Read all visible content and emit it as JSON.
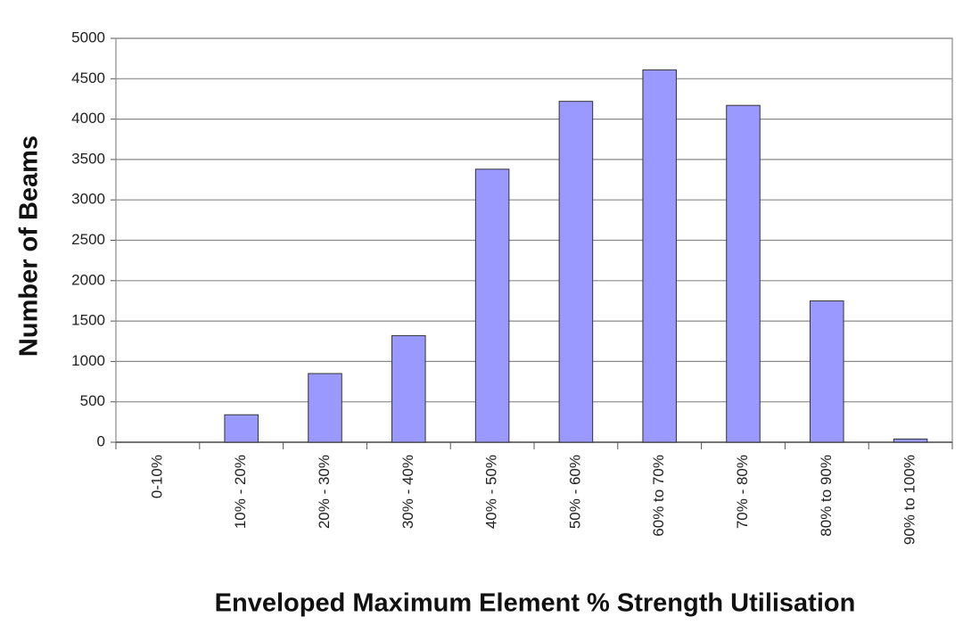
{
  "chart_data": {
    "type": "bar",
    "x_label": "Enveloped Maximum Element % Strength Utilisation",
    "y_label": "Number of Beams",
    "categories": [
      "0-10%",
      "10% - 20%",
      "20% - 30%",
      "30% - 40%",
      "40% - 50%",
      "50% - 60%",
      "60% to 70%",
      "70% - 80%",
      "80% to 90%",
      "90% to 100%"
    ],
    "values": [
      0,
      340,
      850,
      1320,
      3380,
      4220,
      4610,
      4170,
      1750,
      40
    ],
    "color": "#9999ff",
    "ylim": [
      0,
      5000
    ],
    "yticks": [
      0,
      500,
      1000,
      1500,
      2000,
      2500,
      3000,
      3500,
      4000,
      4500,
      5000
    ],
    "grid": true
  }
}
